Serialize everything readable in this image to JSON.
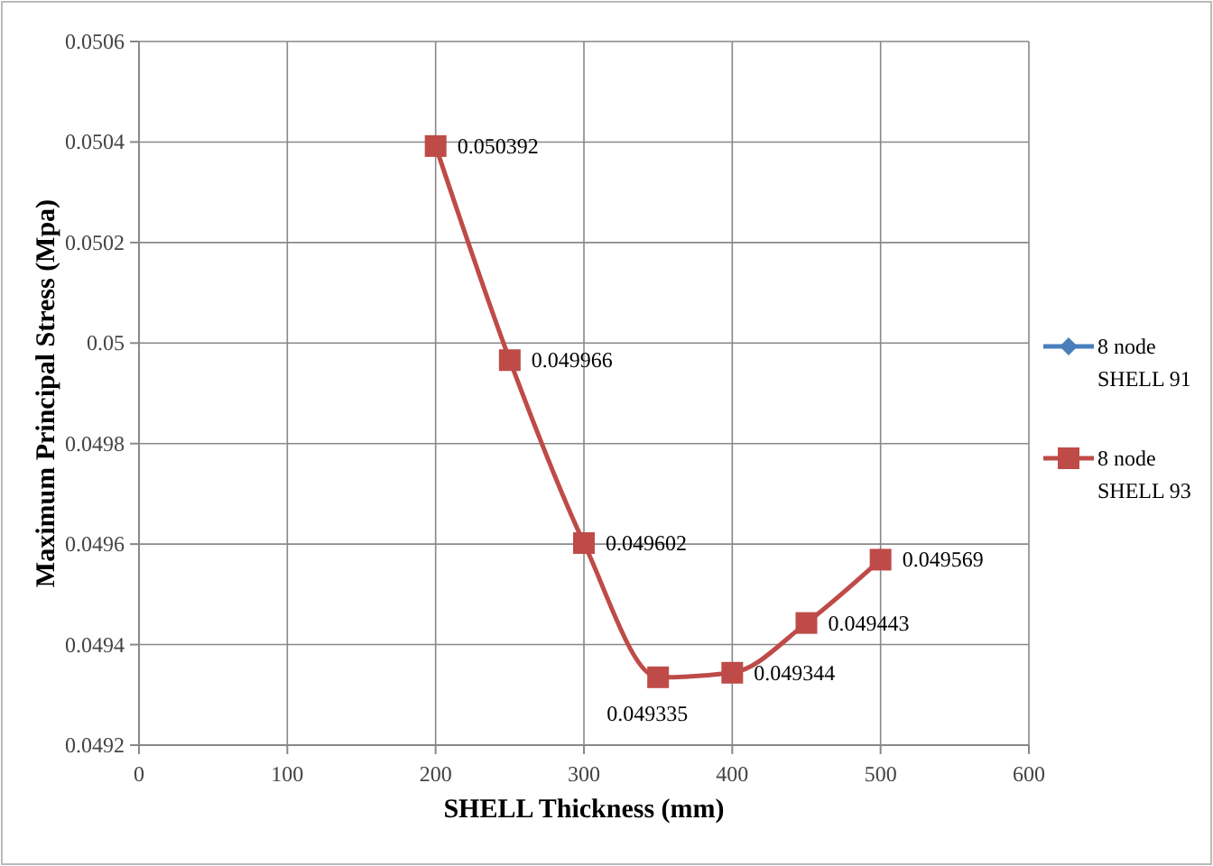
{
  "chart_data": {
    "type": "line",
    "xlabel": "SHELL Thickness (mm)",
    "ylabel": "Maximum Principal Stress (Mpa)",
    "x": [
      200,
      250,
      300,
      350,
      400,
      450,
      500
    ],
    "series": [
      {
        "name": "8 node SHELL 91",
        "color": "#4a7ebb",
        "marker": "diamond",
        "values": [
          null,
          null,
          null,
          null,
          null,
          null,
          null
        ]
      },
      {
        "name": "8 node SHELL 93",
        "color": "#be4b48",
        "marker": "square",
        "values": [
          0.050392,
          0.049966,
          0.049602,
          0.049335,
          0.049344,
          0.049443,
          0.049569
        ]
      }
    ],
    "xlim": [
      0,
      600
    ],
    "xticks": [
      0,
      100,
      200,
      300,
      400,
      500,
      600
    ],
    "ylim": [
      0.0492,
      0.0506
    ],
    "yticks": [
      {
        "value": 0.0492,
        "label": "0.0492"
      },
      {
        "value": 0.0494,
        "label": "0.0494"
      },
      {
        "value": 0.0496,
        "label": "0.0496"
      },
      {
        "value": 0.0498,
        "label": "0.0498"
      },
      {
        "value": 0.05,
        "label": "0.05"
      },
      {
        "value": 0.0502,
        "label": "0.0502"
      },
      {
        "value": 0.0504,
        "label": "0.0504"
      },
      {
        "value": 0.0506,
        "label": "0.0506"
      }
    ],
    "grid": true,
    "legend": "right",
    "data_labels": true,
    "line_style": "solid"
  }
}
